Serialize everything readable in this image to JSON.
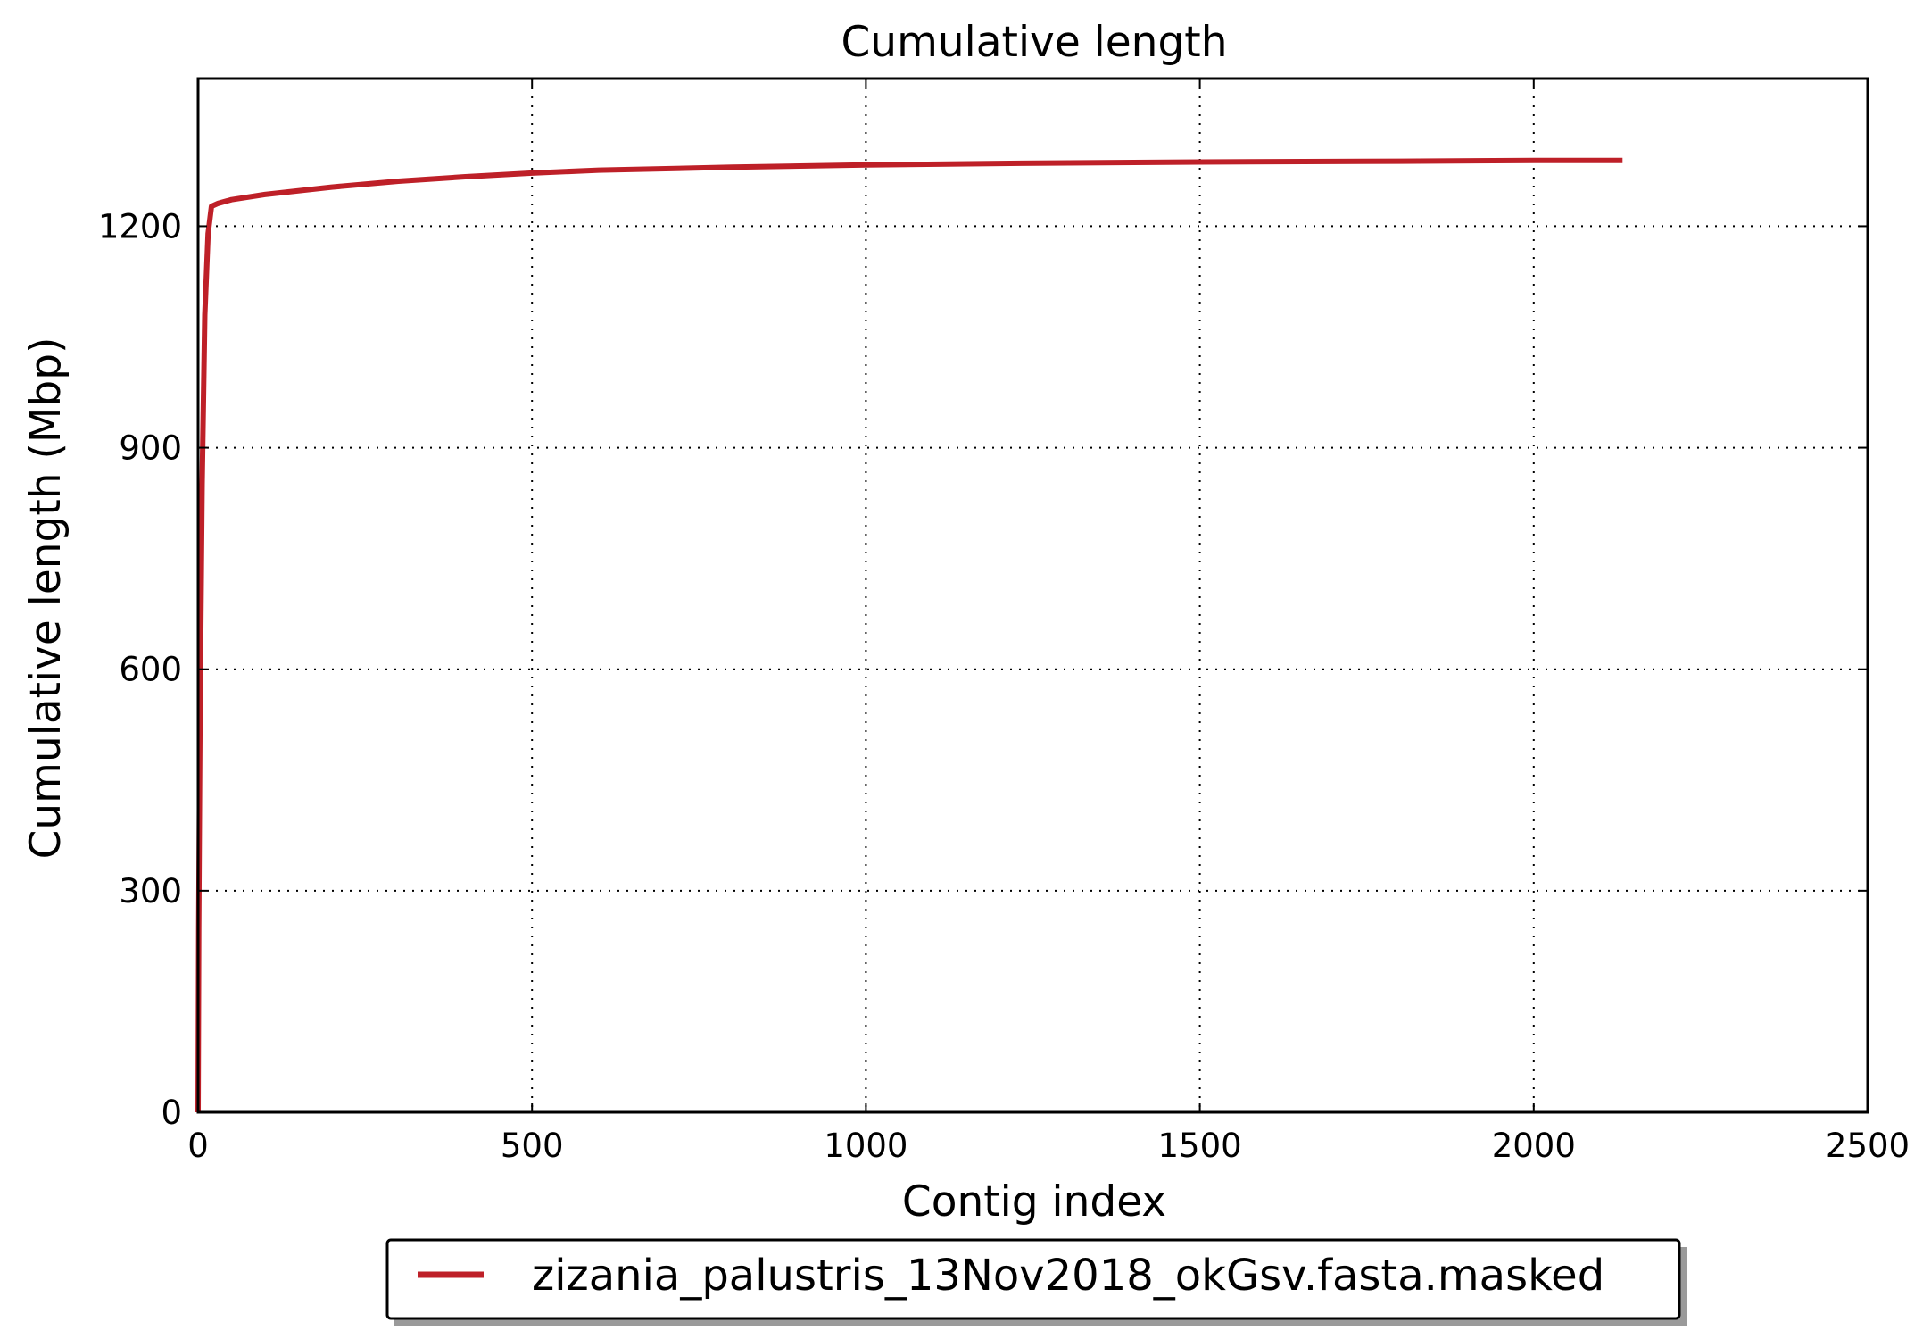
{
  "chart_data": {
    "type": "line",
    "title": "Cumulative length",
    "xlabel": "Contig index",
    "ylabel": "Cumulative length (Mbp)",
    "xlim": [
      0,
      2500
    ],
    "ylim": [
      0,
      1400
    ],
    "xticks": [
      0,
      500,
      1000,
      1500,
      2000,
      2500
    ],
    "yticks": [
      0,
      300,
      600,
      900,
      1200
    ],
    "xtick_labels": [
      "0",
      "500",
      "1000",
      "1500",
      "2000",
      "2500"
    ],
    "ytick_labels": [
      "0",
      "300",
      "600",
      "900",
      "1200"
    ],
    "grid": true,
    "legend_position": "bottom-center, below plot",
    "series": [
      {
        "name": "zizania_palustris_13Nov2018_okGsv.fasta.masked",
        "color": "#be2028",
        "x": [
          0,
          1,
          3,
          6,
          10,
          15,
          20,
          30,
          50,
          100,
          200,
          300,
          400,
          500,
          600,
          800,
          1000,
          1200,
          1500,
          1800,
          2000,
          2133
        ],
        "y": [
          0,
          250,
          550,
          850,
          1080,
          1190,
          1227,
          1231,
          1236,
          1243,
          1253,
          1261,
          1267,
          1272,
          1276,
          1280,
          1283,
          1285,
          1287,
          1288,
          1289,
          1289
        ]
      }
    ]
  }
}
